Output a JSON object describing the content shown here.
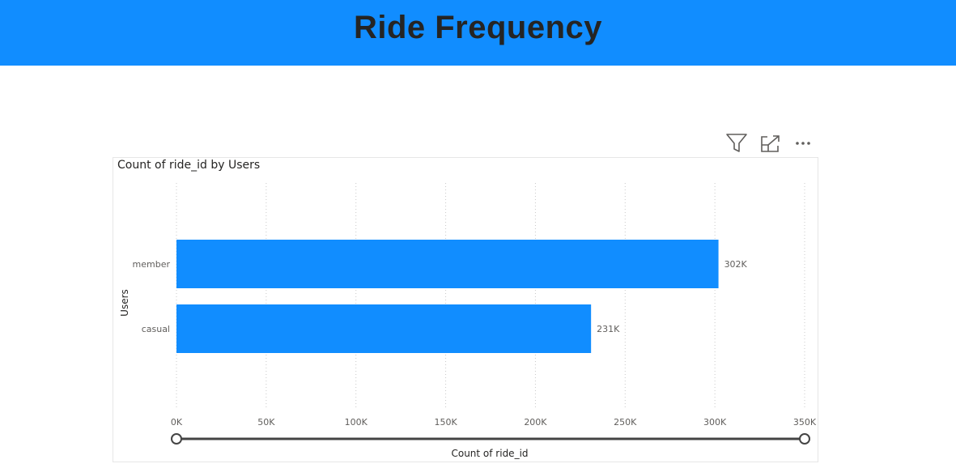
{
  "page": {
    "title": "Ride Frequency"
  },
  "toolbar": {
    "icons": [
      "filter-icon",
      "focus-mode-icon",
      "more-options-icon"
    ]
  },
  "colors": {
    "banner": "#118dff",
    "bar": "#118dff",
    "title_text": "#252423"
  },
  "chart_data": {
    "type": "bar",
    "orientation": "horizontal",
    "title": "Count of ride_id by Users",
    "xlabel": "Count of ride_id",
    "ylabel": "Users",
    "categories": [
      "member",
      "casual"
    ],
    "values": [
      302000,
      231000
    ],
    "data_labels": [
      "302K",
      "231K"
    ],
    "xlim": [
      0,
      350000
    ],
    "xticks": [
      0,
      50000,
      100000,
      150000,
      200000,
      250000,
      300000,
      350000
    ],
    "xtick_labels": [
      "0K",
      "50K",
      "100K",
      "150K",
      "200K",
      "250K",
      "300K",
      "350K"
    ],
    "grid": "vertical-dotted",
    "range_slider": true
  }
}
